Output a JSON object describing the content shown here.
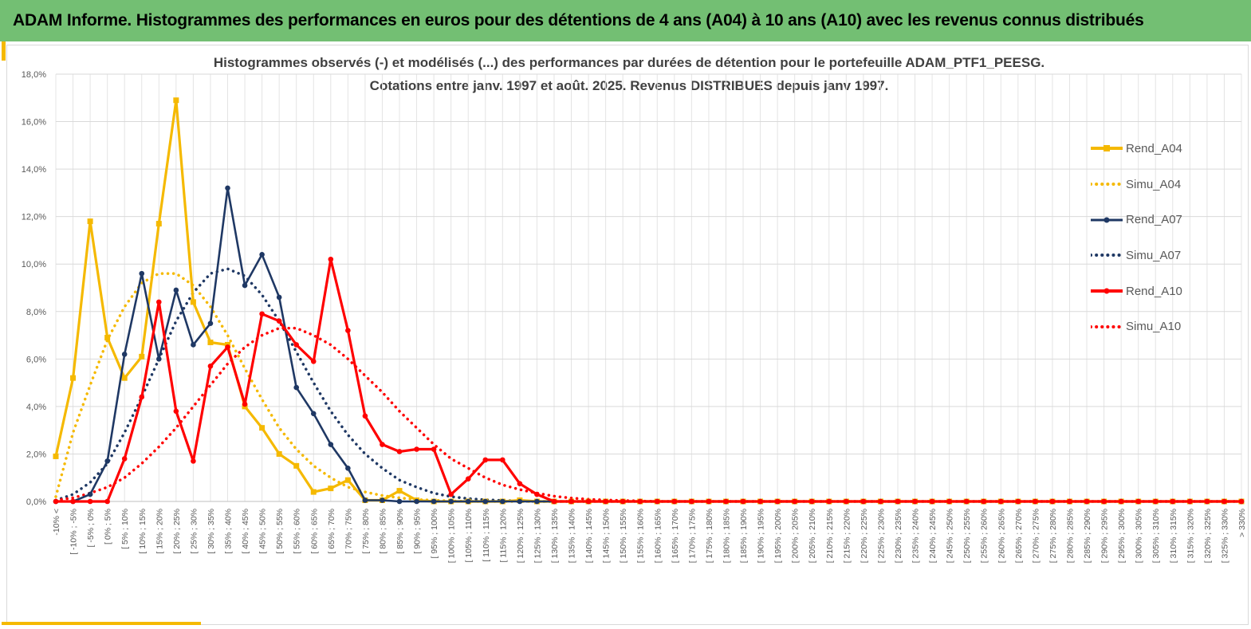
{
  "banner": {
    "title": "ADAM Informe. Histogrammes des performances en euros pour des détentions de 4 ans (A04) à 10 ans (A10) avec les revenus connus distribués"
  },
  "colors": {
    "banner_bg": "#73bf73",
    "accent": "#f5b900",
    "a04": "#f5b900",
    "a07": "#1f3864",
    "a10": "#ff0000"
  },
  "chart_data": {
    "type": "line",
    "title_line1": "Histogrammes observés (-) et modélisés (...) des performances par durées de détention pour le portefeuille ADAM_PTF1_PEESG.",
    "title_line2": "Cotations entre janv. 1997 et août. 2025. Revenus DISTRIBUES depuis janv 1997.",
    "ylim": [
      0,
      18
    ],
    "y_ticks": [
      "0,0%",
      "2,0%",
      "4,0%",
      "6,0%",
      "8,0%",
      "10,0%",
      "12,0%",
      "14,0%",
      "16,0%",
      "18,0%"
    ],
    "grid": true,
    "legend_position": "right",
    "categories": [
      "-10% <",
      "[ -10% ; -5%",
      "[ -5% ; 0%",
      "[ 0% ; 5%",
      "[ 5% ; 10%",
      "[ 10% ; 15%",
      "[ 15% ; 20%",
      "[ 20% ; 25%",
      "[ 25% ; 30%",
      "[ 30% ; 35%",
      "[ 35% ; 40%",
      "[ 40% ; 45%",
      "[ 45% ; 50%",
      "[ 50% ; 55%",
      "[ 55% ; 60%",
      "[ 60% ; 65%",
      "[ 65% ; 70%",
      "[ 70% ; 75%",
      "[ 75% ; 80%",
      "[ 80% ; 85%",
      "[ 85% ; 90%",
      "[ 90% ; 95%",
      "[ 95% ; 100%",
      "[ 100% ; 105%",
      "[ 105% ; 110%",
      "[ 110% ; 115%",
      "[ 115% ; 120%",
      "[ 120% ; 125%",
      "[ 125% ; 130%",
      "[ 130% ; 135%",
      "[ 135% ; 140%",
      "[ 140% ; 145%",
      "[ 145% ; 150%",
      "[ 150% ; 155%",
      "[ 155% ; 160%",
      "[ 160% ; 165%",
      "[ 165% ; 170%",
      "[ 170% ; 175%",
      "[ 175% ; 180%",
      "[ 180% ; 185%",
      "[ 185% ; 190%",
      "[ 190% ; 195%",
      "[ 195% ; 200%",
      "[ 200% ; 205%",
      "[ 205% ; 210%",
      "[ 210% ; 215%",
      "[ 215% ; 220%",
      "[ 220% ; 225%",
      "[ 225% ; 230%",
      "[ 230% ; 235%",
      "[ 235% ; 240%",
      "[ 240% ; 245%",
      "[ 245% ; 250%",
      "[ 250% ; 255%",
      "[ 255% ; 260%",
      "[ 260% ; 265%",
      "[ 265% ; 270%",
      "[ 270% ; 275%",
      "[ 275% ; 280%",
      "[ 280% ; 285%",
      "[ 285% ; 290%",
      "[ 290% ; 295%",
      "[ 295% ; 300%",
      "[ 300% ; 305%",
      "[ 305% ; 310%",
      "[ 310% ; 315%",
      "[ 315% ; 320%",
      "[ 320% ; 325%",
      "[ 325% ; 330%",
      "> 330%"
    ],
    "series": [
      {
        "name": "Rend_A04",
        "style": "solid",
        "color": "#f5b900",
        "marker": "square",
        "values": [
          1.9,
          5.2,
          11.8,
          6.9,
          5.2,
          6.1,
          11.7,
          16.9,
          8.4,
          6.7,
          6.6,
          4.0,
          3.1,
          2.0,
          1.5,
          0.4,
          0.55,
          0.9,
          0.05,
          0.05,
          0.45,
          0.05,
          0,
          0,
          0,
          0,
          0,
          0.05,
          0,
          0,
          0,
          0,
          0,
          0,
          0,
          0,
          0,
          0,
          0,
          0,
          0,
          0,
          0,
          0,
          0,
          0,
          0,
          0,
          0,
          0,
          0,
          0,
          0,
          0,
          0,
          0,
          0,
          0,
          0,
          0,
          0,
          0,
          0,
          0,
          0,
          0,
          0,
          0,
          0,
          0
        ]
      },
      {
        "name": "Simu_A04",
        "style": "dotted",
        "color": "#f5b900",
        "values": [
          0.2,
          2.9,
          4.9,
          6.8,
          8.2,
          9.2,
          9.6,
          9.6,
          9.1,
          8.2,
          7.0,
          5.6,
          4.3,
          3.1,
          2.2,
          1.5,
          1.0,
          0.6,
          0.4,
          0.25,
          0.15,
          0.08,
          0.05,
          0.02,
          0,
          0,
          0,
          0,
          0,
          0,
          0,
          0,
          0,
          0,
          0,
          0,
          0,
          0,
          0,
          0,
          0,
          0,
          0,
          0,
          0,
          0,
          0,
          0,
          0,
          0,
          0,
          0,
          0,
          0,
          0,
          0,
          0,
          0,
          0,
          0,
          0,
          0,
          0,
          0,
          0,
          0,
          0,
          0,
          0,
          0
        ]
      },
      {
        "name": "Rend_A07",
        "style": "solid",
        "color": "#1f3864",
        "marker": "circle",
        "values": [
          0,
          0,
          0.3,
          1.7,
          6.2,
          9.6,
          6.0,
          8.9,
          6.6,
          7.5,
          13.2,
          9.1,
          10.4,
          8.6,
          4.8,
          3.7,
          2.4,
          1.4,
          0.05,
          0.05,
          0,
          0,
          0,
          0,
          0,
          0,
          0,
          0,
          0,
          0,
          0,
          0,
          0,
          0,
          0,
          0,
          0,
          0,
          0,
          0,
          0,
          0,
          0,
          0,
          0,
          0,
          0,
          0,
          0,
          0,
          0,
          0,
          0,
          0,
          0,
          0,
          0,
          0,
          0,
          0,
          0,
          0,
          0,
          0,
          0,
          0,
          0,
          0,
          0,
          0
        ]
      },
      {
        "name": "Simu_A07",
        "style": "dotted",
        "color": "#1f3864",
        "values": [
          0.05,
          0.3,
          0.8,
          1.6,
          2.9,
          4.4,
          6.0,
          7.6,
          8.8,
          9.6,
          9.8,
          9.5,
          8.7,
          7.6,
          6.3,
          5.0,
          3.8,
          2.8,
          2.0,
          1.4,
          0.9,
          0.6,
          0.35,
          0.2,
          0.12,
          0.07,
          0.04,
          0.02,
          0,
          0,
          0,
          0,
          0,
          0,
          0,
          0,
          0,
          0,
          0,
          0,
          0,
          0,
          0,
          0,
          0,
          0,
          0,
          0,
          0,
          0,
          0,
          0,
          0,
          0,
          0,
          0,
          0,
          0,
          0,
          0,
          0,
          0,
          0,
          0,
          0,
          0,
          0,
          0,
          0,
          0
        ]
      },
      {
        "name": "Rend_A10",
        "style": "solid",
        "color": "#ff0000",
        "marker": "circle",
        "values": [
          0,
          0,
          0,
          0,
          1.8,
          4.4,
          8.4,
          3.8,
          1.7,
          5.7,
          6.5,
          4.1,
          7.9,
          7.6,
          6.6,
          5.9,
          10.2,
          7.2,
          3.6,
          2.4,
          2.1,
          2.2,
          2.2,
          0.3,
          0.95,
          1.75,
          1.75,
          0.75,
          0.3,
          0,
          0,
          0,
          0,
          0,
          0,
          0,
          0,
          0,
          0,
          0,
          0,
          0,
          0,
          0,
          0,
          0,
          0,
          0,
          0,
          0,
          0,
          0,
          0,
          0,
          0,
          0,
          0,
          0,
          0,
          0,
          0,
          0,
          0,
          0,
          0,
          0,
          0,
          0,
          0,
          0
        ]
      },
      {
        "name": "Simu_A10",
        "style": "dotted",
        "color": "#ff0000",
        "values": [
          0.05,
          0.15,
          0.35,
          0.6,
          1.0,
          1.6,
          2.3,
          3.1,
          4.0,
          4.9,
          5.8,
          6.5,
          7.0,
          7.3,
          7.3,
          7.0,
          6.6,
          6.0,
          5.3,
          4.6,
          3.8,
          3.1,
          2.4,
          1.8,
          1.4,
          1.0,
          0.7,
          0.5,
          0.35,
          0.22,
          0.14,
          0.09,
          0.06,
          0.04,
          0.02,
          0,
          0,
          0,
          0,
          0,
          0,
          0,
          0,
          0,
          0,
          0,
          0,
          0,
          0,
          0,
          0,
          0,
          0,
          0,
          0,
          0,
          0,
          0,
          0,
          0,
          0,
          0,
          0,
          0,
          0,
          0,
          0,
          0,
          0,
          0
        ]
      }
    ]
  }
}
